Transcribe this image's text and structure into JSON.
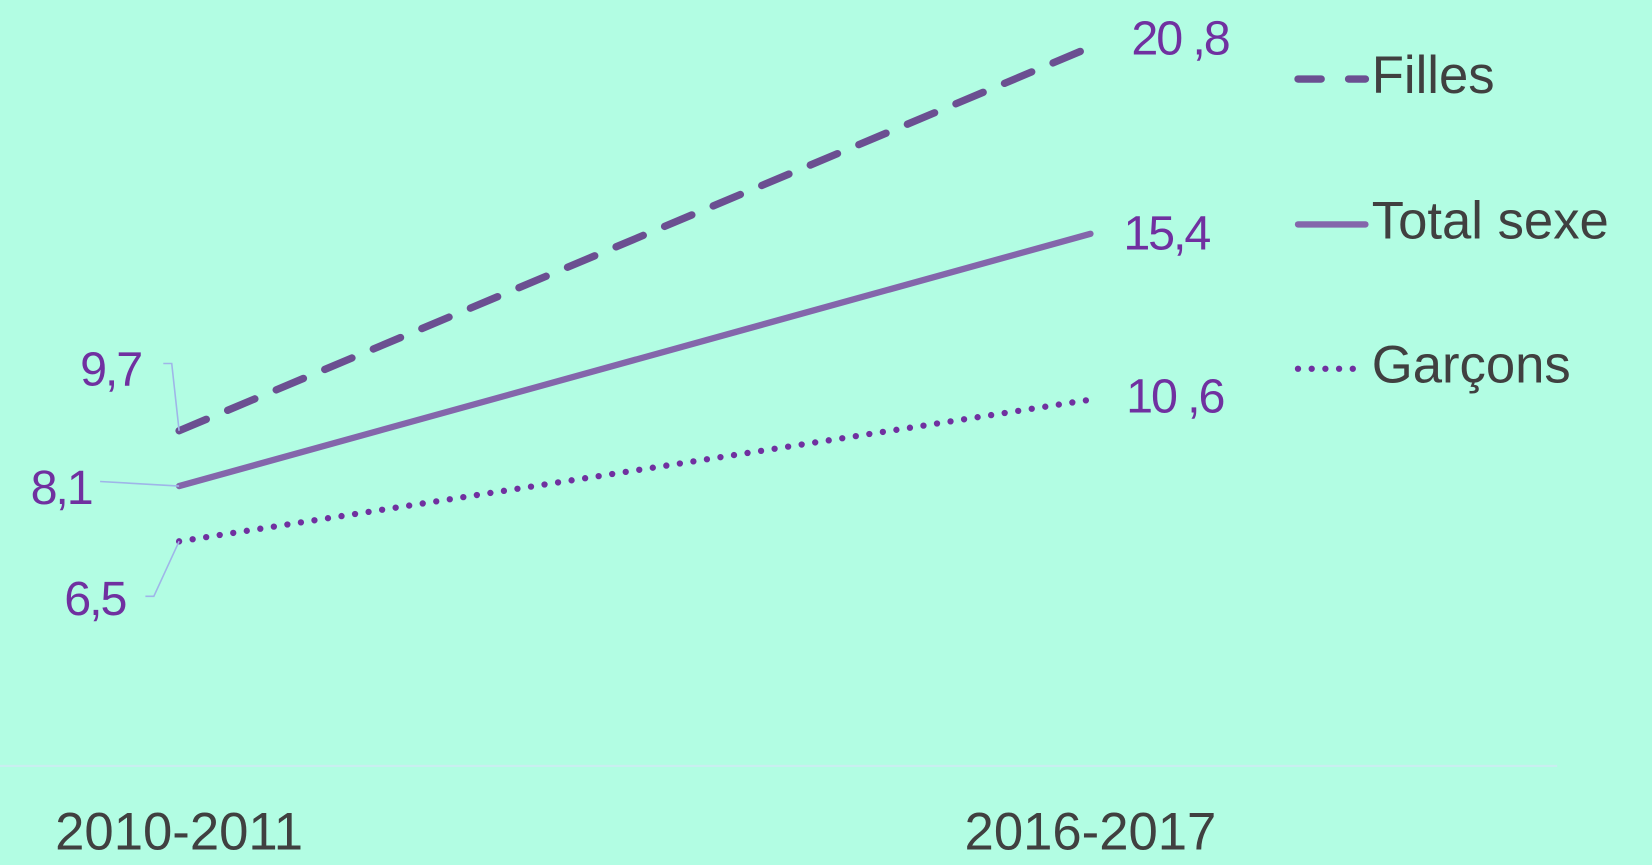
{
  "chart_data": {
    "type": "line",
    "categories": [
      "2010-2011",
      "2016-2017"
    ],
    "series": [
      {
        "name": "Filles",
        "color": "#6b4f91",
        "style": "dashed",
        "values": [
          9.7,
          20.8
        ],
        "value_labels": [
          "9,7",
          "20 ,8"
        ]
      },
      {
        "name": "Total sexe",
        "color": "#8466ab",
        "style": "solid",
        "values": [
          8.1,
          15.4
        ],
        "value_labels": [
          "8,1",
          "15,4"
        ]
      },
      {
        "name": "Garçons",
        "color": "#7030a0",
        "style": "dotted",
        "values": [
          6.5,
          10.6
        ],
        "value_labels": [
          "6,5",
          "10 ,6"
        ]
      }
    ],
    "legend": "right"
  }
}
